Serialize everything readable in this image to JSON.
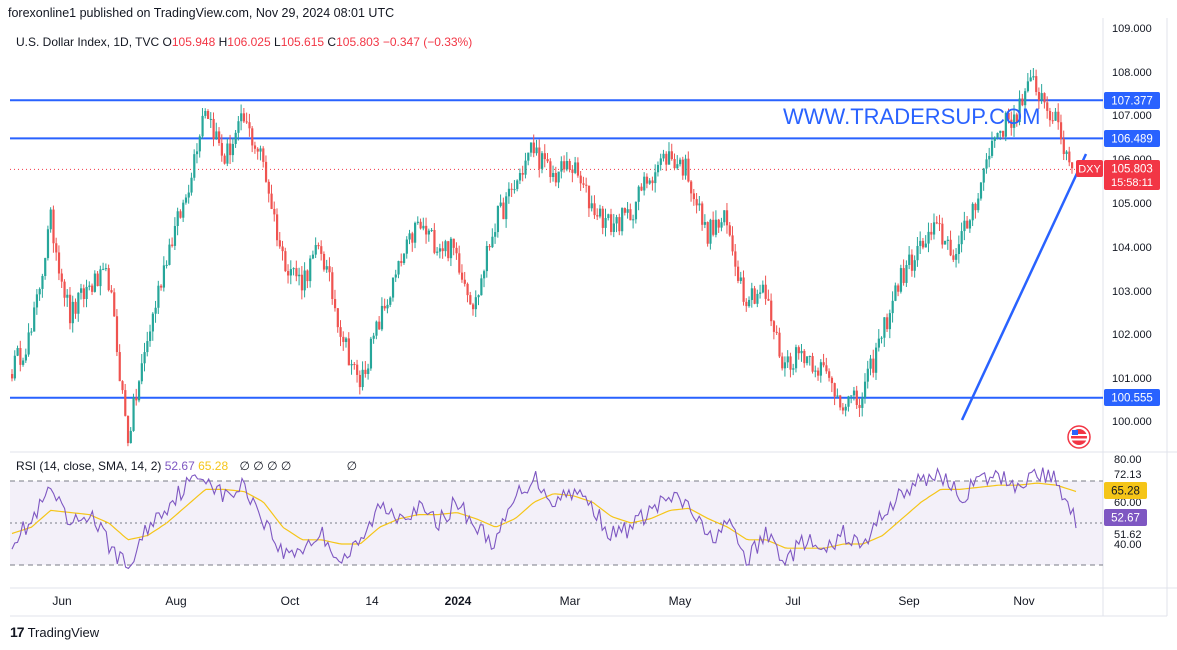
{
  "header": {
    "publisher": "forexonline1 published on TradingView.com, Nov 29, 2024 08:01 UTC"
  },
  "legend": {
    "symbol": "U.S. Dollar Index, 1D, TVC",
    "open_label": "O",
    "open": "105.948",
    "high_label": "H",
    "high": "106.025",
    "low_label": "L",
    "low": "105.615",
    "close_label": "C",
    "close": "105.803",
    "change": "−0.347 (−0.33%)"
  },
  "watermark": "WWW.TRADERSUP.COM",
  "colors": {
    "up": "#26a69a",
    "down": "#ef5350",
    "hline": "#2962ff",
    "rsi": "#7e57c2",
    "rsi_ma": "#f5c518",
    "price_badge": "#f23645"
  },
  "rsi_legend": {
    "text": "RSI (14, close, SMA, 14, 2)",
    "rsi_value": "52.67",
    "ma_value": "65.28",
    "placeholders": [
      "∅",
      "∅",
      "∅",
      "∅",
      "∅"
    ]
  },
  "footer": {
    "brand": "TradingView",
    "logo": "17"
  },
  "chart_data": [
    {
      "type": "candlestick",
      "symbol": "DXY",
      "price_axis_ticks": [
        "109.000",
        "108.000",
        "107.000",
        "106.000",
        "105.000",
        "104.000",
        "103.000",
        "102.000",
        "101.000",
        "100.000"
      ],
      "ylim": [
        99.4,
        109.2
      ],
      "time_axis_labels": [
        "Jun",
        "Aug",
        "Oct",
        "14",
        "2024",
        "Mar",
        "May",
        "Jul",
        "Sep",
        "Nov"
      ],
      "horizontal_lines": [
        {
          "value": 107.377,
          "label": "107.377"
        },
        {
          "value": 106.489,
          "label": "106.489"
        },
        {
          "value": 100.555,
          "label": "100.555"
        }
      ],
      "trendline": {
        "from_date": "Sep 27",
        "from_value": 100.0,
        "to_date": "Nov 29",
        "to_value": 106.1
      },
      "last_price": {
        "value": 105.803,
        "label": "105.803",
        "ticker": "DXY",
        "countdown": "15:58:11"
      },
      "anchors": [
        {
          "date": "May 2023",
          "value": 101.2
        },
        {
          "date": "May 2023",
          "value": 102.0
        },
        {
          "date": "Jun 2023",
          "value": 104.6
        },
        {
          "date": "Jun 2023",
          "value": 102.4
        },
        {
          "date": "Jun 2023",
          "value": 103.1
        },
        {
          "date": "Jul 2023",
          "value": 103.3
        },
        {
          "date": "Jul 2023",
          "value": 99.6
        },
        {
          "date": "Aug 2023",
          "value": 101.8
        },
        {
          "date": "Aug 2023",
          "value": 103.8
        },
        {
          "date": "Sep 2023",
          "value": 105.1
        },
        {
          "date": "Oct 2023",
          "value": 107.3
        },
        {
          "date": "Oct 2023",
          "value": 106.0
        },
        {
          "date": "Oct 2023",
          "value": 106.9
        },
        {
          "date": "Nov 2023",
          "value": 106.0
        },
        {
          "date": "Nov 2023",
          "value": 103.8
        },
        {
          "date": "Nov 2023",
          "value": 103.2
        },
        {
          "date": "Dec 2023",
          "value": 104.0
        },
        {
          "date": "Dec 2023",
          "value": 102.2
        },
        {
          "date": "Dec 2023",
          "value": 100.8
        },
        {
          "date": "Jan 2024",
          "value": 102.2
        },
        {
          "date": "Jan 2024",
          "value": 103.4
        },
        {
          "date": "Feb 2024",
          "value": 104.5
        },
        {
          "date": "Feb 2024",
          "value": 104.1
        },
        {
          "date": "Mar 2024",
          "value": 103.9
        },
        {
          "date": "Mar 2024",
          "value": 102.6
        },
        {
          "date": "Mar 2024",
          "value": 104.5
        },
        {
          "date": "Apr 2024",
          "value": 105.3
        },
        {
          "date": "Apr 2024",
          "value": 106.3
        },
        {
          "date": "Apr 2024",
          "value": 105.6
        },
        {
          "date": "May 2024",
          "value": 105.9
        },
        {
          "date": "May 2024",
          "value": 105.0
        },
        {
          "date": "May 2024",
          "value": 104.5
        },
        {
          "date": "Jun 2024",
          "value": 104.7
        },
        {
          "date": "Jun 2024",
          "value": 105.6
        },
        {
          "date": "Jun 2024",
          "value": 106.1
        },
        {
          "date": "Jul 2024",
          "value": 105.8
        },
        {
          "date": "Jul 2024",
          "value": 104.3
        },
        {
          "date": "Jul 2024",
          "value": 104.6
        },
        {
          "date": "Aug 2024",
          "value": 102.9
        },
        {
          "date": "Aug 2024",
          "value": 103.0
        },
        {
          "date": "Aug 2024",
          "value": 101.3
        },
        {
          "date": "Sep 2024",
          "value": 101.6
        },
        {
          "date": "Sep 2024",
          "value": 101.2
        },
        {
          "date": "Sep 2024",
          "value": 100.5
        },
        {
          "date": "Sep 2024",
          "value": 100.4
        },
        {
          "date": "Oct 2024",
          "value": 101.8
        },
        {
          "date": "Oct 2024",
          "value": 103.2
        },
        {
          "date": "Oct 2024",
          "value": 103.9
        },
        {
          "date": "Oct 2024",
          "value": 104.4
        },
        {
          "date": "Nov 2024",
          "value": 103.8
        },
        {
          "date": "Nov 2024",
          "value": 105.1
        },
        {
          "date": "Nov 2024",
          "value": 106.6
        },
        {
          "date": "Nov 2024",
          "value": 107.0
        },
        {
          "date": "Nov 2024",
          "value": 107.8
        },
        {
          "date": "Nov 2024",
          "value": 107.0
        },
        {
          "date": "Nov 29 2024",
          "value": 105.803
        }
      ]
    },
    {
      "type": "line",
      "name": "RSI (14, close, SMA, 14, 2)",
      "ylim": [
        25,
        85
      ],
      "axis_ticks": [
        "80.00",
        "72.13",
        "60.00",
        "51.62",
        "40.00"
      ],
      "bands": {
        "upper": 70,
        "middle": 50,
        "lower": 30
      },
      "current": {
        "rsi": "52.67",
        "ma": "65.28"
      },
      "rsi_anchors": [
        42,
        50,
        66,
        48,
        55,
        40,
        28,
        48,
        58,
        68,
        73,
        62,
        68,
        52,
        35,
        38,
        45,
        32,
        40,
        58,
        54,
        57,
        50,
        60,
        48,
        40,
        62,
        72,
        60,
        66,
        58,
        44,
        48,
        56,
        62,
        58,
        42,
        50,
        32,
        45,
        32,
        42,
        35,
        45,
        38,
        55,
        64,
        70,
        74,
        62,
        70,
        72,
        68,
        74,
        70,
        52
      ],
      "ma_anchors": [
        45,
        48,
        56,
        55,
        54,
        50,
        42,
        44,
        50,
        58,
        66,
        66,
        65,
        60,
        48,
        42,
        42,
        40,
        40,
        48,
        52,
        54,
        54,
        55,
        52,
        48,
        52,
        60,
        64,
        63,
        60,
        53,
        50,
        52,
        56,
        57,
        52,
        48,
        42,
        42,
        38,
        38,
        38,
        40,
        40,
        44,
        52,
        60,
        66,
        66,
        67,
        68,
        68,
        69,
        68,
        65
      ]
    }
  ]
}
